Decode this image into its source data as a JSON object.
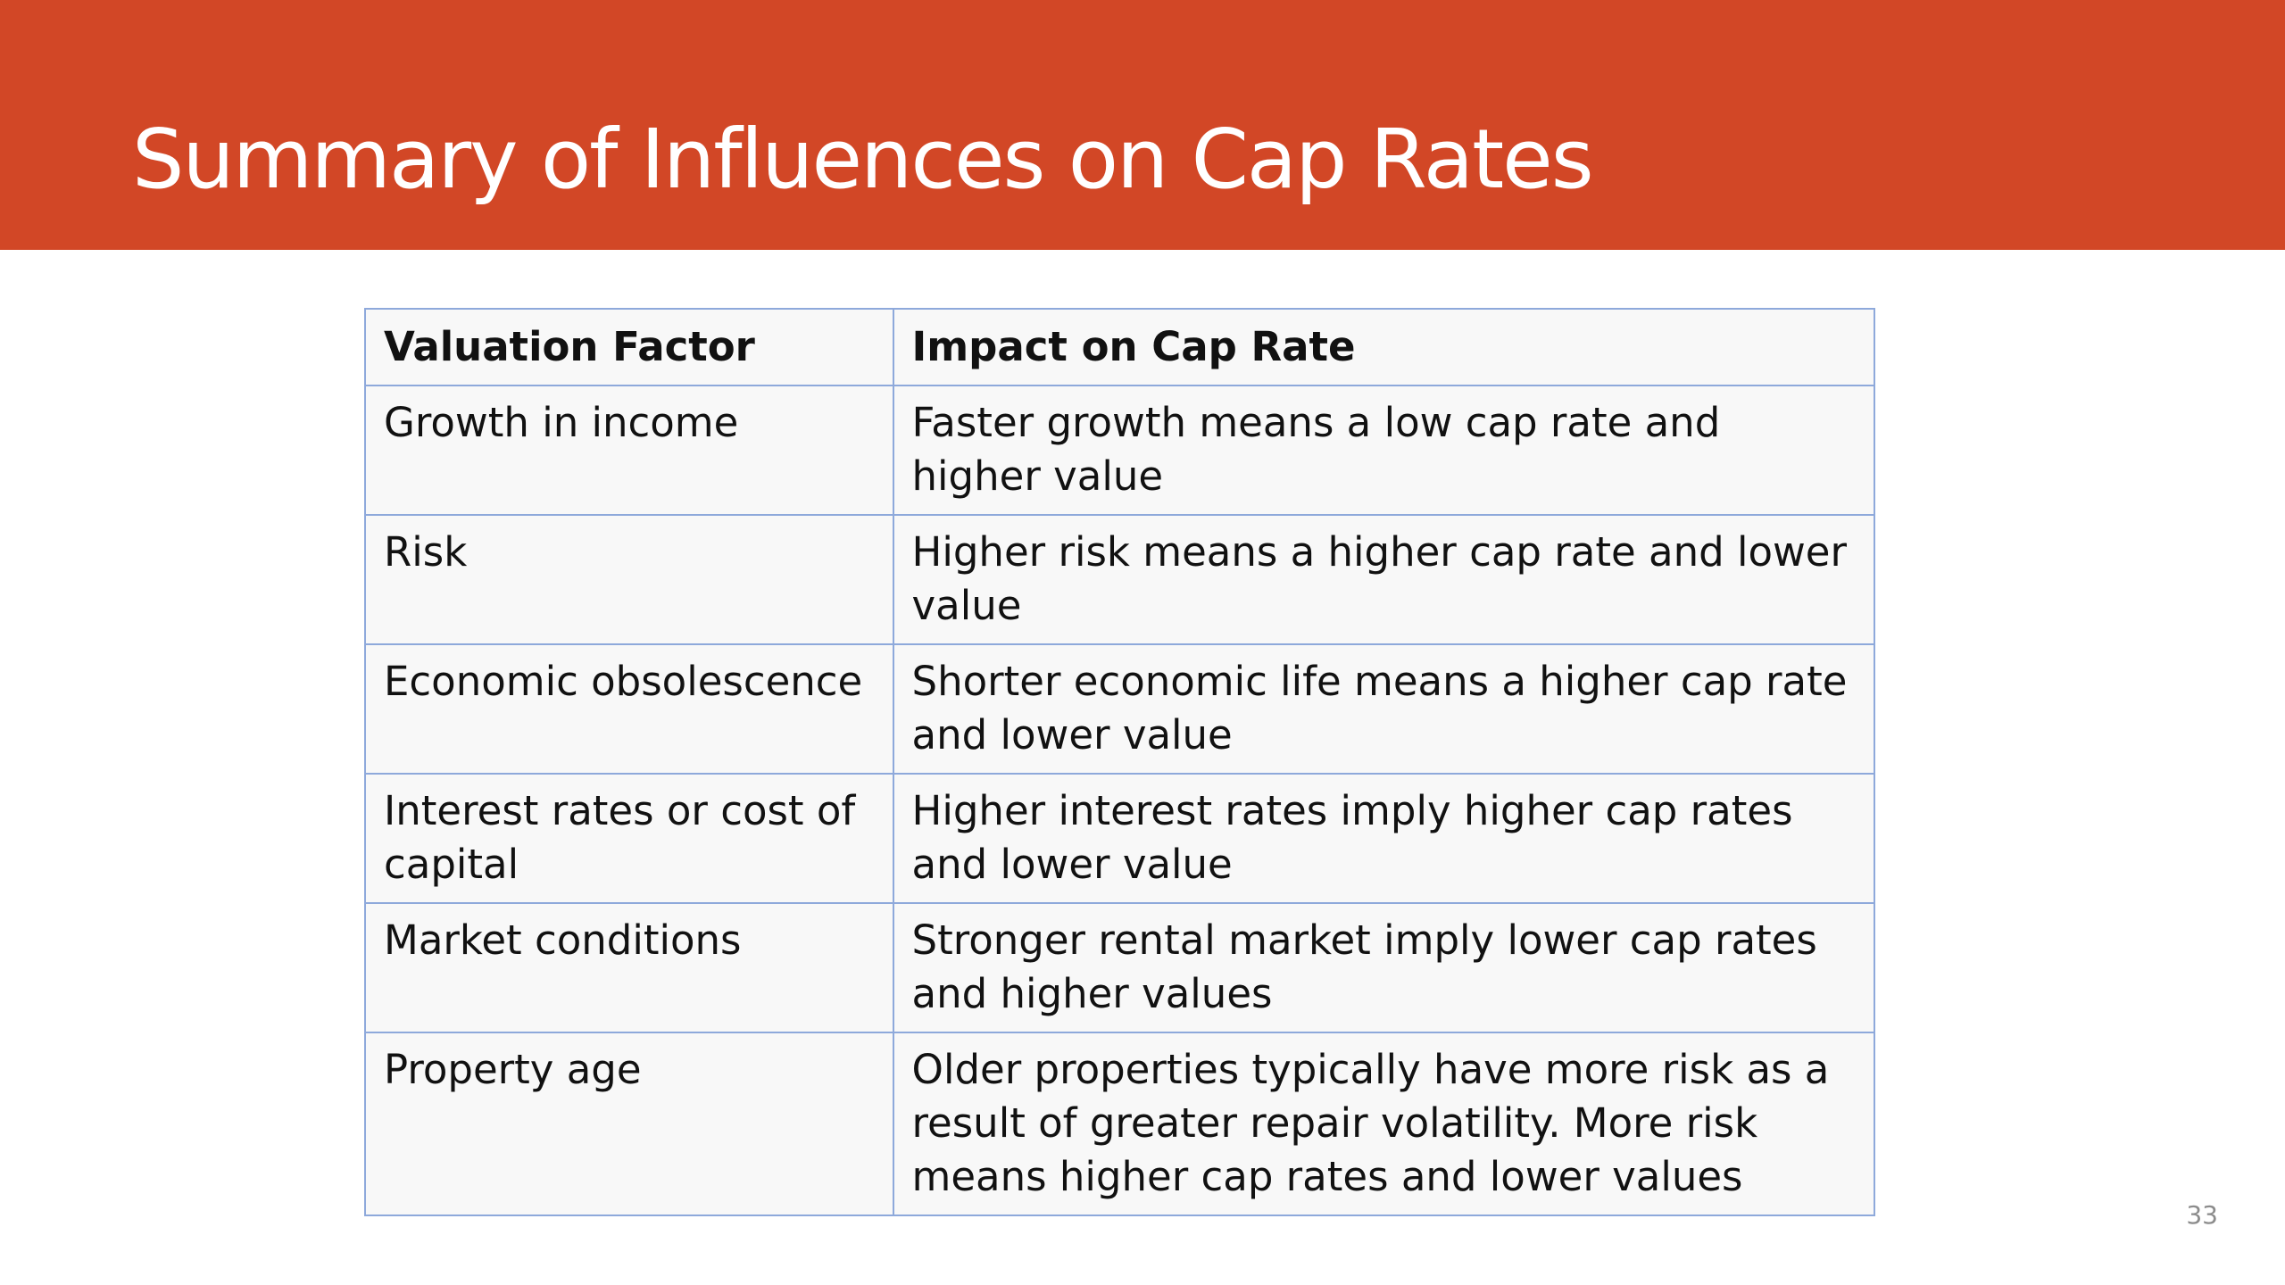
{
  "slide": {
    "title": "Summary of Influences on Cap Rates",
    "page_number": "33",
    "accent_color": "#D24726",
    "table_border_color": "#8EA9DB"
  },
  "table": {
    "headers": [
      "Valuation Factor",
      "Impact on Cap Rate"
    ],
    "rows": [
      {
        "factor": "Growth in income",
        "impact": "Faster growth means a low cap rate and higher value"
      },
      {
        "factor": "Risk",
        "impact": "Higher risk means a higher cap rate and lower value"
      },
      {
        "factor": "Economic obsolescence",
        "impact": "Shorter economic life means a higher cap rate and lower value"
      },
      {
        "factor": "Interest rates or cost of capital",
        "impact": "Higher interest rates imply higher cap rates and lower value"
      },
      {
        "factor": "Market conditions",
        "impact": "Stronger rental market imply lower cap rates and higher values"
      },
      {
        "factor": "Property age",
        "impact": "Older properties typically have more risk as a result of greater repair volatility. More risk means higher cap rates and lower values"
      }
    ]
  }
}
